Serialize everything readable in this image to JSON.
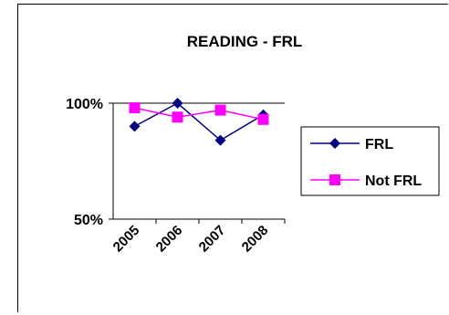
{
  "chart_data": {
    "type": "line",
    "title": "READING - FRL",
    "xlabel": "",
    "ylabel": "",
    "categories": [
      "2005",
      "2006",
      "2007",
      "2008"
    ],
    "ylim": [
      50,
      100
    ],
    "yticks": [
      {
        "value": 100,
        "label": "100%"
      },
      {
        "value": 50,
        "label": "50%"
      }
    ],
    "grid": "horizontal line at 100% only",
    "legend_position": "right",
    "series": [
      {
        "name": "FRL",
        "color": "#000080",
        "marker": "diamond",
        "values": [
          90,
          100,
          84,
          95
        ]
      },
      {
        "name": "Not FRL",
        "color": "#ff00ff",
        "marker": "square",
        "values": [
          98,
          94,
          97,
          93
        ]
      }
    ]
  }
}
